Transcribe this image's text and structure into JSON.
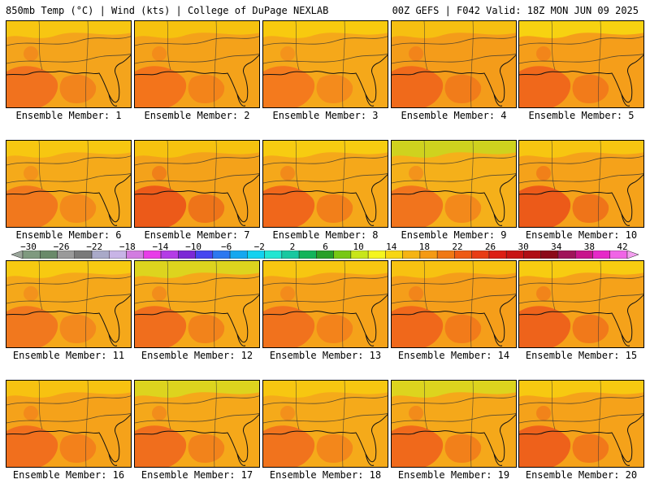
{
  "header": {
    "title_left": "850mb Temp (°C) | Wind (kts) | College of DuPage NEXLAB",
    "title_right": "00Z GEFS | F042 Valid: 18Z MON JUN 09 2025"
  },
  "members": [
    {
      "label": "Ensemble Member: 1",
      "bg": "#f4a41c",
      "accent": "#f06a1e",
      "north": "#f7cc10"
    },
    {
      "label": "Ensemble Member: 2",
      "bg": "#f4a21a",
      "accent": "#f26c1c",
      "north": "#f6c80e"
    },
    {
      "label": "Ensemble Member: 3",
      "bg": "#f5a81a",
      "accent": "#f3721f",
      "north": "#f8d00e"
    },
    {
      "label": "Ensemble Member: 4",
      "bg": "#f49c1a",
      "accent": "#ef621c",
      "north": "#f6c610"
    },
    {
      "label": "Ensemble Member: 5",
      "bg": "#f59e1a",
      "accent": "#ee5e1c",
      "north": "#f7da10"
    },
    {
      "label": "Ensemble Member: 6",
      "bg": "#f5aa1a",
      "accent": "#f0701e",
      "north": "#f7cc10"
    },
    {
      "label": "Ensemble Member: 7",
      "bg": "#f4a21a",
      "accent": "#ea4e1a",
      "north": "#f6c80e"
    },
    {
      "label": "Ensemble Member: 8",
      "bg": "#f5a81a",
      "accent": "#ee5c1c",
      "north": "#f7d210"
    },
    {
      "label": "Ensemble Member: 9",
      "bg": "#f5b01a",
      "accent": "#f06a1e",
      "north": "#c8d820"
    },
    {
      "label": "Ensemble Member: 10",
      "bg": "#f5a21a",
      "accent": "#ea4e1a",
      "north": "#f7cc10"
    },
    {
      "label": "Ensemble Member: 11",
      "bg": "#f5a81a",
      "accent": "#f07020",
      "north": "#f7d010"
    },
    {
      "label": "Ensemble Member: 12",
      "bg": "#f5a81a",
      "accent": "#ee641e",
      "north": "#d8dc20"
    },
    {
      "label": "Ensemble Member: 13",
      "bg": "#f5a21a",
      "accent": "#f06a1e",
      "north": "#f7cc10"
    },
    {
      "label": "Ensemble Member: 14",
      "bg": "#f59e1a",
      "accent": "#ee5e1c",
      "north": "#f7c810"
    },
    {
      "label": "Ensemble Member: 15",
      "bg": "#f5a21a",
      "accent": "#ec581c",
      "north": "#f7d410"
    },
    {
      "label": "Ensemble Member: 16",
      "bg": "#f5a21a",
      "accent": "#f0661e",
      "north": "#f7c810"
    },
    {
      "label": "Ensemble Member: 17",
      "bg": "#f5a81a",
      "accent": "#ee641e",
      "north": "#d8dc20"
    },
    {
      "label": "Ensemble Member: 18",
      "bg": "#f5aa1a",
      "accent": "#f06a1e",
      "north": "#f7cc10"
    },
    {
      "label": "Ensemble Member: 19",
      "bg": "#f5a81a",
      "accent": "#ee5e1c",
      "north": "#d8dc20"
    },
    {
      "label": "Ensemble Member: 20",
      "bg": "#f5a21a",
      "accent": "#ec561c",
      "north": "#f7d010"
    }
  ],
  "colorbar": {
    "tick_labels": [
      "−30",
      "−26",
      "−22",
      "−18",
      "−14",
      "−10",
      "−6",
      "−2",
      "2",
      "6",
      "10",
      "14",
      "18",
      "22",
      "26",
      "30",
      "34",
      "38",
      "42"
    ],
    "colors": [
      "#9ba69b",
      "#7f9a7f",
      "#6a8a6a",
      "#9a9a9a",
      "#7a7a7a",
      "#a9a9c8",
      "#c8b4e6",
      "#d27ce0",
      "#e83ce8",
      "#b43ce6",
      "#7c28d6",
      "#4646f0",
      "#2c78f0",
      "#14a8f0",
      "#12d2f0",
      "#22e6d2",
      "#18c8a0",
      "#12b45a",
      "#28a028",
      "#78c814",
      "#c8e61a",
      "#f5f51e",
      "#f7d612",
      "#f5b414",
      "#f59a14",
      "#f07814",
      "#ee5a14",
      "#e83c14",
      "#dc1e14",
      "#c81414",
      "#b00e14",
      "#8c0a18",
      "#a0145a",
      "#c8148c",
      "#e628c8",
      "#f064e6",
      "#f4a0f0"
    ]
  }
}
